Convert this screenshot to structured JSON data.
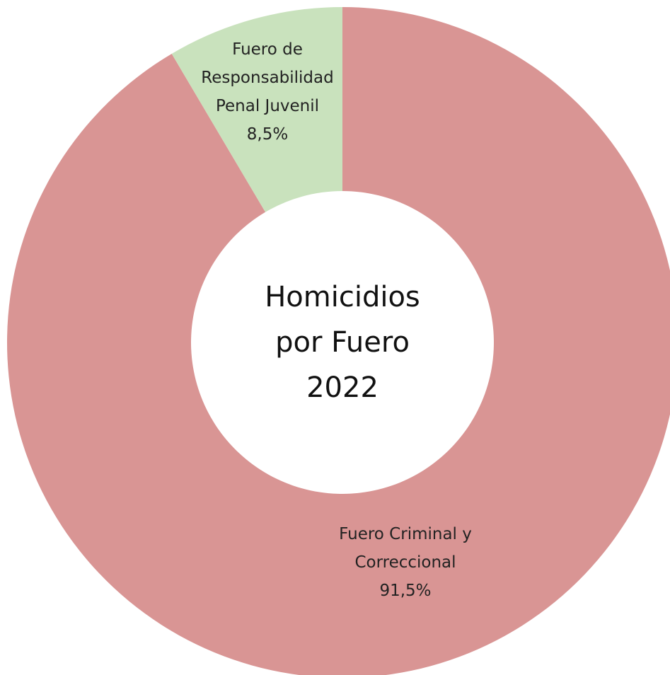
{
  "chart_data": {
    "type": "donut",
    "title": "Homicidios por Fuero 2022",
    "categories": [
      "Fuero Criminal y Correccional",
      "Fuero de Responsabilidad Penal Juvenil"
    ],
    "values": [
      91.5,
      8.5
    ],
    "value_labels": [
      "91,5%",
      "8,5%"
    ],
    "colors": [
      "#d99594",
      "#c9e2bd"
    ]
  }
}
